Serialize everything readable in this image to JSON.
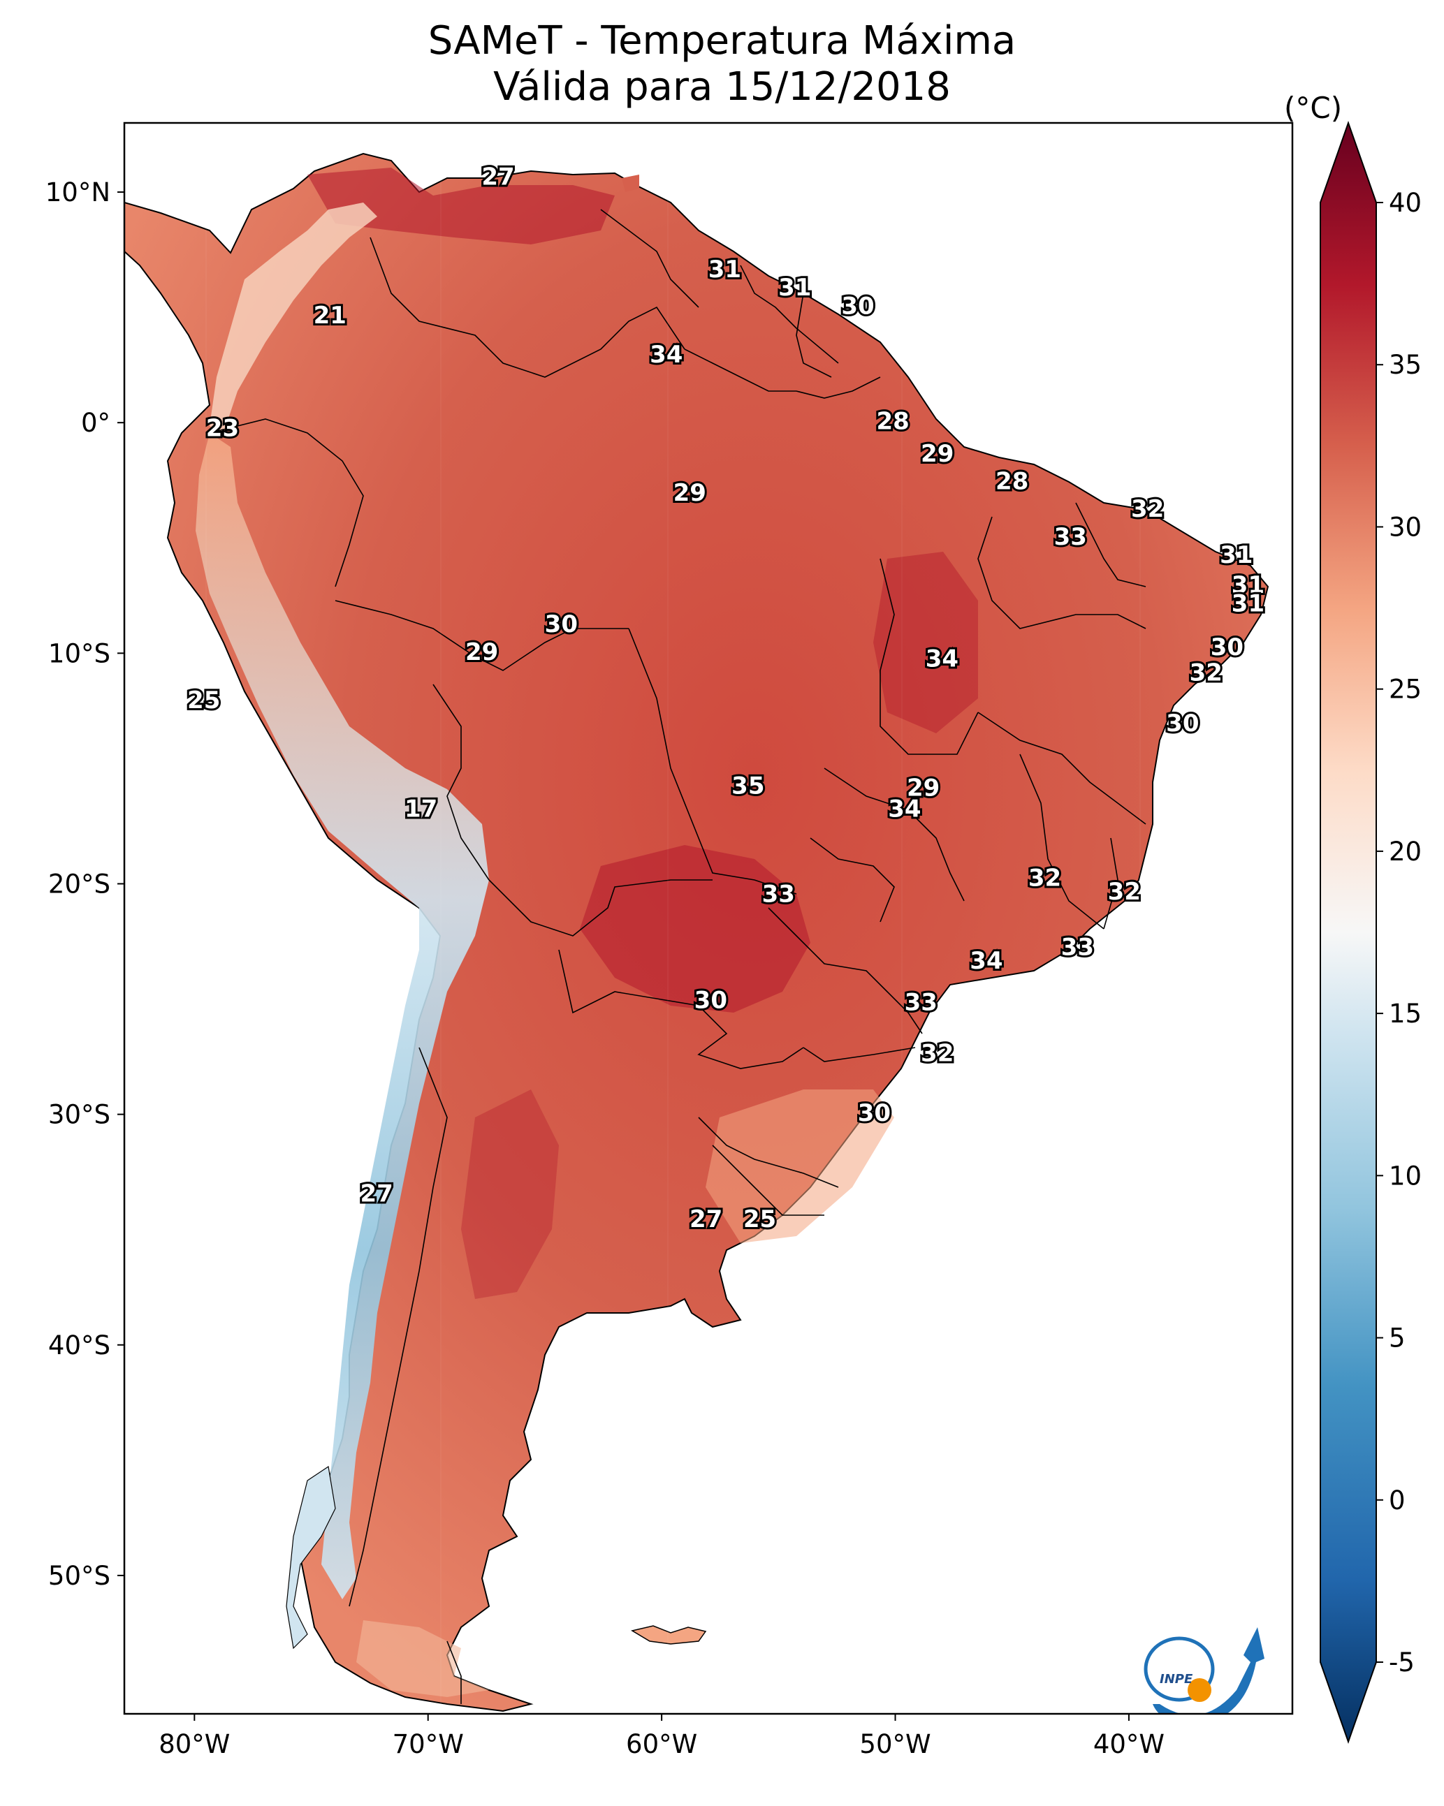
{
  "title": {
    "line1": "SAMeT - Temperatura Máxima",
    "line2": "Válida para 15/12/2018"
  },
  "colorbar": {
    "unit": "(°C)",
    "ticks": [
      "-5",
      "0",
      "5",
      "10",
      "15",
      "20",
      "25",
      "30",
      "35",
      "40"
    ],
    "tick_values": [
      -5,
      0,
      5,
      10,
      15,
      20,
      25,
      30,
      35,
      40
    ],
    "range": [
      -5,
      40
    ],
    "colors": [
      "#08306b",
      "#2166ac",
      "#4393c3",
      "#92c5de",
      "#d1e5f0",
      "#f7f7f7",
      "#fddbc7",
      "#f4a582",
      "#d6604d",
      "#b2182b",
      "#67001f"
    ]
  },
  "axes": {
    "lat_labels": [
      "10°N",
      "0°",
      "10°S",
      "20°S",
      "30°S",
      "40°S",
      "50°S"
    ],
    "lat_values": [
      10,
      0,
      -10,
      -20,
      -30,
      -40,
      -50
    ],
    "lon_labels": [
      "80°W",
      "70°W",
      "60°W",
      "50°W",
      "40°W"
    ],
    "lon_values": [
      -80,
      -70,
      -60,
      -50,
      -40
    ],
    "extent": {
      "lon": [
        -83,
        -33
      ],
      "lat": [
        -56,
        13
      ]
    }
  },
  "temperature_labels": [
    {
      "text": "27",
      "lon": -67.0,
      "lat": 10.6
    },
    {
      "text": "21",
      "lon": -74.2,
      "lat": 4.6
    },
    {
      "text": "31",
      "lon": -57.3,
      "lat": 6.6
    },
    {
      "text": "31",
      "lon": -54.3,
      "lat": 5.8
    },
    {
      "text": "30",
      "lon": -51.6,
      "lat": 5.0
    },
    {
      "text": "34",
      "lon": -59.8,
      "lat": 2.9
    },
    {
      "text": "23",
      "lon": -78.8,
      "lat": -0.3
    },
    {
      "text": "28",
      "lon": -50.1,
      "lat": 0.0
    },
    {
      "text": "29",
      "lon": -48.2,
      "lat": -1.4
    },
    {
      "text": "28",
      "lon": -45.0,
      "lat": -2.6
    },
    {
      "text": "29",
      "lon": -58.8,
      "lat": -3.1
    },
    {
      "text": "32",
      "lon": -39.2,
      "lat": -3.8
    },
    {
      "text": "33",
      "lon": -42.5,
      "lat": -5.0
    },
    {
      "text": "31",
      "lon": -35.4,
      "lat": -5.8
    },
    {
      "text": "31",
      "lon": -34.9,
      "lat": -7.1
    },
    {
      "text": "31",
      "lon": -34.9,
      "lat": -7.9
    },
    {
      "text": "30",
      "lon": -64.3,
      "lat": -8.8
    },
    {
      "text": "29",
      "lon": -67.7,
      "lat": -10.0
    },
    {
      "text": "34",
      "lon": -48.0,
      "lat": -10.3
    },
    {
      "text": "30",
      "lon": -35.8,
      "lat": -9.8
    },
    {
      "text": "32",
      "lon": -36.7,
      "lat": -10.9
    },
    {
      "text": "25",
      "lon": -79.6,
      "lat": -12.1
    },
    {
      "text": "30",
      "lon": -37.7,
      "lat": -13.1
    },
    {
      "text": "35",
      "lon": -56.3,
      "lat": -15.8
    },
    {
      "text": "29",
      "lon": -48.8,
      "lat": -15.9
    },
    {
      "text": "34",
      "lon": -49.6,
      "lat": -16.8
    },
    {
      "text": "17",
      "lon": -70.3,
      "lat": -16.8
    },
    {
      "text": "32",
      "lon": -43.6,
      "lat": -19.8
    },
    {
      "text": "32",
      "lon": -40.2,
      "lat": -20.4
    },
    {
      "text": "33",
      "lon": -55.0,
      "lat": -20.5
    },
    {
      "text": "33",
      "lon": -42.2,
      "lat": -22.8
    },
    {
      "text": "34",
      "lon": -46.1,
      "lat": -23.4
    },
    {
      "text": "30",
      "lon": -57.9,
      "lat": -25.1
    },
    {
      "text": "33",
      "lon": -48.9,
      "lat": -25.2
    },
    {
      "text": "32",
      "lon": -48.2,
      "lat": -27.4
    },
    {
      "text": "30",
      "lon": -50.9,
      "lat": -30.0
    },
    {
      "text": "27",
      "lon": -72.2,
      "lat": -33.5
    },
    {
      "text": "27",
      "lon": -58.1,
      "lat": -34.6
    },
    {
      "text": "25",
      "lon": -55.8,
      "lat": -34.6
    }
  ],
  "logo": {
    "text": "INPE"
  }
}
